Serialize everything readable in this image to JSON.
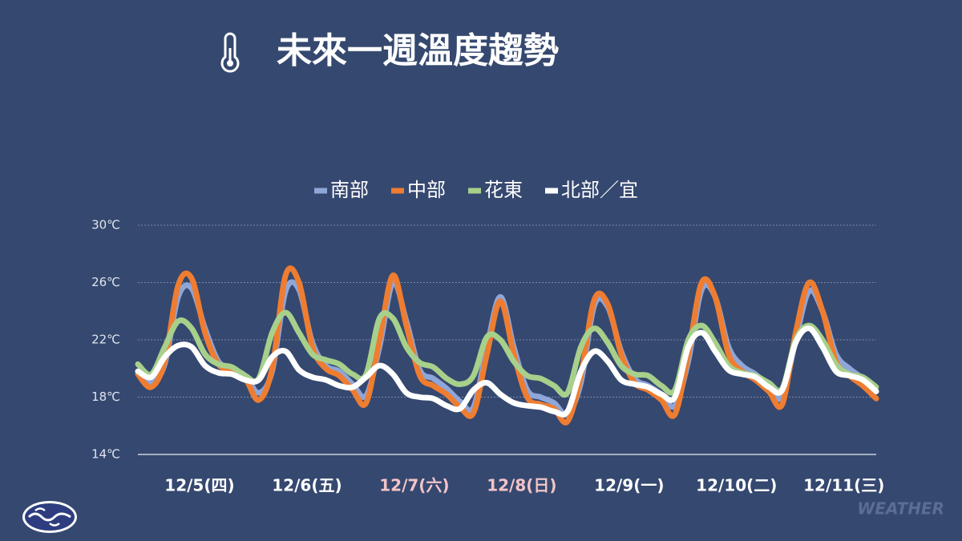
{
  "chart_data": {
    "type": "line",
    "title": "未來一週溫度趨勢",
    "watermark": "WEATHER",
    "categories": [
      null,
      null,
      null,
      null,
      "12/5(四)",
      null,
      null,
      null,
      null,
      null,
      null,
      null,
      "12/6(五)",
      null,
      null,
      null,
      null,
      null,
      null,
      null,
      "12/7(六)",
      null,
      null,
      null,
      null,
      null,
      null,
      null,
      "12/8(日)",
      null,
      null,
      null,
      null,
      null,
      null,
      null,
      "12/9(一)",
      null,
      null,
      null,
      null,
      null,
      null,
      null,
      "12/10(二)",
      null,
      null,
      null,
      null,
      null,
      null,
      null,
      "12/11(三)",
      null,
      null,
      null
    ],
    "category_label_colors": [
      null,
      null,
      null,
      null,
      "#ffffff",
      null,
      null,
      null,
      null,
      null,
      null,
      null,
      "#ffffff",
      null,
      null,
      null,
      null,
      null,
      null,
      null,
      "#f2c4c8",
      null,
      null,
      null,
      null,
      null,
      null,
      null,
      "#f2c4c8",
      null,
      null,
      null,
      null,
      null,
      null,
      null,
      "#ffffff",
      null,
      null,
      null,
      null,
      null,
      null,
      null,
      "#ffffff",
      null,
      null,
      null,
      null,
      null,
      null,
      null,
      "#ffffff",
      null,
      null,
      null
    ],
    "ylim": [
      14,
      30
    ],
    "yticks": [
      {
        "value": 14,
        "label": "14℃"
      },
      {
        "value": 18,
        "label": "18℃"
      },
      {
        "value": 22,
        "label": "22℃"
      },
      {
        "value": 26,
        "label": "26℃"
      },
      {
        "value": 30,
        "label": "30℃"
      }
    ],
    "grid": true,
    "legend": "top",
    "series": [
      {
        "name": "南部",
        "color": "#8fa6d9",
        "values": [
          19.8,
          19.0,
          20.3,
          25.0,
          25.6,
          22.8,
          20.5,
          20.0,
          19.5,
          18.3,
          19.8,
          25.4,
          25.5,
          21.8,
          20.2,
          19.8,
          18.9,
          18.1,
          21.5,
          26.0,
          23.3,
          19.9,
          19.3,
          18.6,
          17.7,
          17.3,
          21.5,
          25.0,
          21.5,
          18.5,
          18.0,
          17.6,
          16.8,
          19.0,
          24.4,
          24.3,
          21.2,
          19.3,
          18.8,
          18.2,
          17.4,
          20.5,
          25.5,
          25.0,
          21.5,
          20.2,
          19.6,
          18.8,
          18.0,
          22.0,
          25.4,
          24.0,
          21.0,
          20.0,
          19.3,
          18.4
        ]
      },
      {
        "name": "中部",
        "color": "#ee7d31",
        "values": [
          19.6,
          18.7,
          20.5,
          25.8,
          26.3,
          22.5,
          20.3,
          19.8,
          19.3,
          17.8,
          20.0,
          26.5,
          26.0,
          21.5,
          20.0,
          19.5,
          18.5,
          17.6,
          22.0,
          26.5,
          23.0,
          19.5,
          18.8,
          18.2,
          17.3,
          16.9,
          21.0,
          24.7,
          21.0,
          18.0,
          17.5,
          17.2,
          16.3,
          19.5,
          24.8,
          24.5,
          21.0,
          19.0,
          18.5,
          17.8,
          16.8,
          21.0,
          26.0,
          25.0,
          21.0,
          19.8,
          19.2,
          18.4,
          17.5,
          22.5,
          26.0,
          24.0,
          20.5,
          19.5,
          18.8,
          17.9
        ]
      },
      {
        "name": "花東",
        "color": "#a7d08b",
        "values": [
          20.3,
          19.6,
          21.5,
          23.3,
          22.8,
          21.0,
          20.3,
          20.1,
          19.5,
          19.3,
          22.5,
          23.9,
          22.5,
          21.0,
          20.6,
          20.3,
          19.6,
          19.6,
          23.5,
          23.5,
          21.5,
          20.4,
          20.1,
          19.3,
          18.9,
          19.5,
          22.2,
          22.0,
          20.5,
          19.5,
          19.3,
          18.8,
          18.3,
          21.5,
          22.8,
          21.8,
          20.2,
          19.6,
          19.5,
          18.8,
          18.5,
          22.0,
          23.0,
          21.8,
          20.2,
          19.7,
          19.5,
          19.0,
          18.6,
          22.0,
          23.0,
          22.0,
          20.3,
          19.6,
          19.4,
          18.7
        ]
      },
      {
        "name": "北部／宜",
        "color": "#ffffff",
        "values": [
          19.8,
          19.4,
          20.8,
          21.6,
          21.5,
          20.2,
          19.7,
          19.6,
          19.2,
          19.2,
          20.8,
          21.2,
          19.9,
          19.4,
          19.2,
          18.8,
          18.7,
          19.4,
          20.2,
          19.6,
          18.3,
          18.0,
          17.9,
          17.4,
          17.2,
          18.5,
          19.0,
          18.2,
          17.6,
          17.4,
          17.3,
          17.0,
          17.0,
          19.8,
          21.2,
          20.5,
          19.2,
          18.9,
          18.7,
          18.2,
          18.0,
          21.5,
          22.5,
          21.2,
          19.9,
          19.6,
          19.4,
          18.7,
          18.5,
          21.8,
          22.8,
          21.5,
          19.8,
          19.5,
          19.2,
          18.4
        ]
      }
    ]
  }
}
